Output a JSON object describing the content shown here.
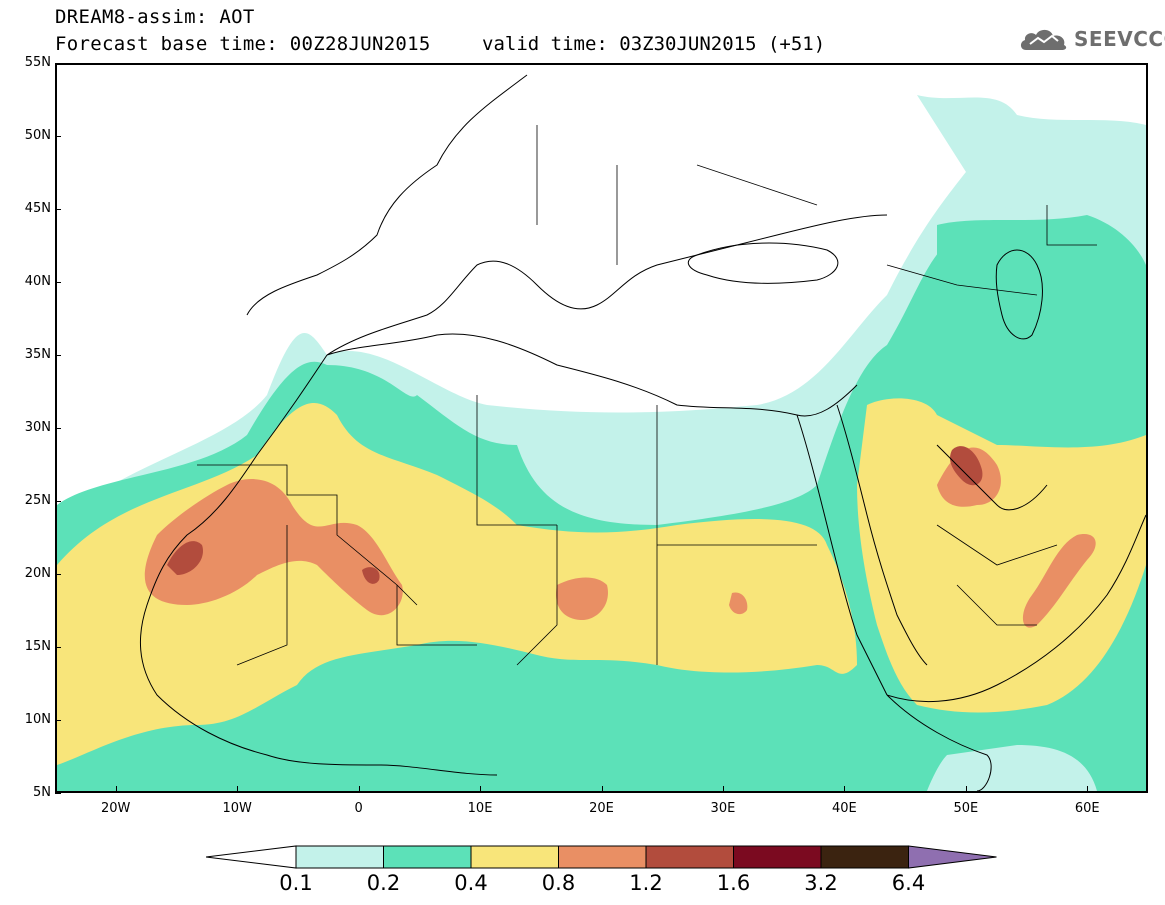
{
  "header": {
    "title": "DREAM8-assim: AOT",
    "base_time": "Forecast base time: 00Z28JUN2015",
    "valid_time": "valid time: 03Z30JUN2015 (+51)"
  },
  "logo": {
    "text": "SEEVCCC",
    "icon": "cloud-icon",
    "color": "#6e6e6e"
  },
  "map": {
    "lat_labels": [
      "55N",
      "50N",
      "45N",
      "40N",
      "35N",
      "30N",
      "25N",
      "20N",
      "15N",
      "10N",
      "5N"
    ],
    "lon_labels": [
      "20W",
      "10W",
      "0",
      "10E",
      "20E",
      "30E",
      "40E",
      "50E",
      "60E"
    ],
    "lat_range": [
      5,
      55
    ],
    "lon_range": [
      -25,
      65
    ]
  },
  "legend": {
    "colors": [
      "#ffffff",
      "#c3f2ea",
      "#5ce1b8",
      "#f8e57a",
      "#e98f64",
      "#b24c3d",
      "#7b0a20",
      "#3b2310",
      "#8f6fb0"
    ],
    "labels": [
      "0.1",
      "0.2",
      "0.4",
      "0.8",
      "1.2",
      "1.6",
      "3.2",
      "6.4"
    ]
  }
}
